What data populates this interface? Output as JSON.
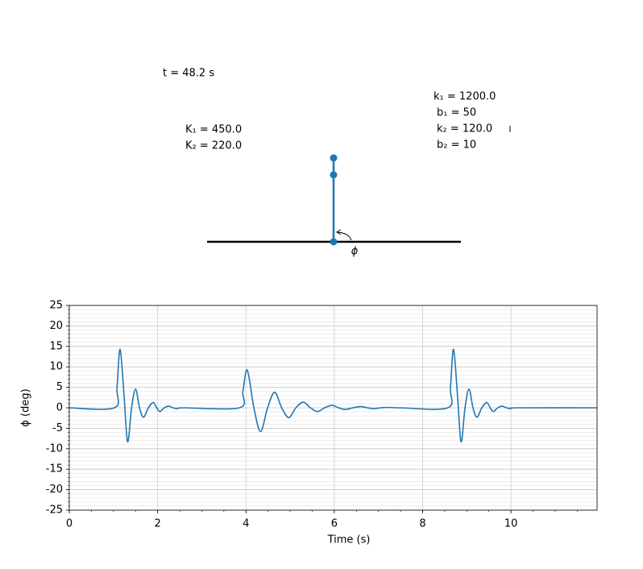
{
  "animation": {
    "time_label": "t = 48.2 s",
    "left_params": [
      "K₁ = 450.0",
      "K₂ = 220.0"
    ],
    "right_params": [
      "k₁ = 1200.0",
      "b₁ = 50",
      "k₂ = 120.0",
      "b₂ = 10"
    ],
    "angle_label": "ϕ"
  },
  "chart_data": {
    "type": "line",
    "xlabel": "Time (s)",
    "ylabel": "ϕ (deg)",
    "x": [
      0,
      1.02,
      1.08,
      1.15,
      1.24,
      1.32,
      1.41,
      1.5,
      1.59,
      1.68,
      1.79,
      1.9,
      1.98,
      2.05,
      2.15,
      2.25,
      2.35,
      2.45,
      2.6,
      3.85,
      3.93,
      4.03,
      4.18,
      4.33,
      4.49,
      4.65,
      4.81,
      4.97,
      5.13,
      5.3,
      5.46,
      5.62,
      5.78,
      5.95,
      6.1,
      6.25,
      6.42,
      6.6,
      6.75,
      6.9,
      7.05,
      7.2,
      7.5,
      8.57,
      8.63,
      8.7,
      8.79,
      8.87,
      8.96,
      9.05,
      9.14,
      9.23,
      9.34,
      9.45,
      9.53,
      9.6,
      9.7,
      9.8,
      9.9,
      10.0,
      10.15,
      11.95
    ],
    "series": [
      {
        "color": "#1f77b4",
        "values": [
          0,
          0,
          5,
          14.3,
          3,
          -8.3,
          0,
          4.6,
          0,
          -2.3,
          0,
          1.3,
          0,
          -0.9,
          0,
          0.4,
          0,
          -0.2,
          0,
          0,
          4,
          9.2,
          0,
          -5.8,
          0,
          3.8,
          0,
          -2.4,
          0,
          1.4,
          0,
          -0.9,
          0,
          0.6,
          0,
          -0.4,
          0,
          0.3,
          0,
          -0.2,
          0,
          0.1,
          0,
          0,
          5,
          14.3,
          3,
          -8.3,
          0,
          4.6,
          0,
          -2.3,
          0,
          1.3,
          0,
          -0.9,
          0,
          0.4,
          0,
          -0.2,
          0,
          0
        ]
      }
    ],
    "xlim": [
      0,
      11.95
    ],
    "ylim": [
      -25,
      25
    ],
    "xticks": [
      0,
      2,
      4,
      6,
      8,
      10
    ],
    "yticks": [
      -25,
      -20,
      -15,
      -10,
      -5,
      0,
      5,
      10,
      15,
      20,
      25
    ],
    "grid": true,
    "minor_grid": true
  }
}
